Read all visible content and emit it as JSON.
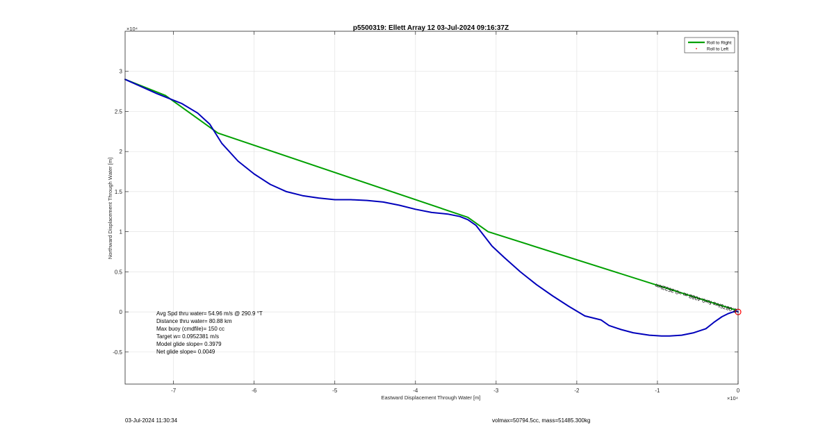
{
  "chart_data": {
    "type": "line",
    "title": "p5500319: Ellett Array 12 03-Jul-2024 09:16:37Z",
    "xlabel": "Eastward Displacement Through Water [m]",
    "ylabel": "Northward Displacement Through Water [m]",
    "xlim": [
      -76000,
      0
    ],
    "ylim": [
      -9000,
      35000
    ],
    "x_exponent_label": "×10⁴",
    "y_exponent_label": "×10⁴",
    "x_ticks": [
      -70000,
      -60000,
      -50000,
      -40000,
      -30000,
      -20000,
      -10000,
      0
    ],
    "x_tick_labels": [
      "-7",
      "-6",
      "-5",
      "-4",
      "-3",
      "-2",
      "-1",
      "0"
    ],
    "y_ticks": [
      -5000,
      0,
      5000,
      10000,
      15000,
      20000,
      25000,
      30000
    ],
    "y_tick_labels": [
      "-0.5",
      "0",
      "0.5",
      "1",
      "1.5",
      "2",
      "2.5",
      "3"
    ],
    "grid": true,
    "legend_position": "top-right",
    "series": [
      {
        "name": "Roll to Right",
        "color": "#00a000",
        "style": "line",
        "x": [
          -76000,
          -71000,
          -64500,
          -33500,
          -31000,
          -200
        ],
        "y": [
          29000,
          27000,
          22300,
          11800,
          10000,
          200
        ]
      },
      {
        "name": "Roll to Left",
        "color": "#ff0000",
        "style": "marker",
        "x": [],
        "y": []
      },
      {
        "name": "",
        "color": "#0000bb",
        "style": "line",
        "x": [
          -76000,
          -72000,
          -69000,
          -67000,
          -65500,
          -64000,
          -62000,
          -60000,
          -58000,
          -56000,
          -54000,
          -52000,
          -50000,
          -48000,
          -46000,
          -44000,
          -42000,
          -40000,
          -38000,
          -36000,
          -34500,
          -33500,
          -32500,
          -31500,
          -30500,
          -29000,
          -27000,
          -25000,
          -23000,
          -21000,
          -19000,
          -17000,
          -16000,
          -14500,
          -13000,
          -11000,
          -9500,
          -8500,
          -7000,
          -5500,
          -4000,
          -3000,
          -2000,
          -1200,
          -600,
          -200,
          0
        ],
        "y": [
          29000,
          27200,
          26000,
          24800,
          23400,
          21000,
          18800,
          17200,
          15900,
          15000,
          14500,
          14200,
          14000,
          14000,
          13900,
          13700,
          13300,
          12800,
          12400,
          12200,
          11900,
          11500,
          10800,
          9500,
          8200,
          6800,
          5000,
          3400,
          2000,
          700,
          -500,
          -1000,
          -1700,
          -2200,
          -2600,
          -2900,
          -3000,
          -3000,
          -2900,
          -2600,
          -2100,
          -1300,
          -600,
          -200,
          0,
          100,
          0
        ]
      }
    ],
    "annotation": "2.0875hrs for0.4088 m =0.3522km",
    "end_marker": {
      "x": 0,
      "y": 0,
      "color": "#ff0000"
    }
  },
  "stats": [
    "Avg Spd thru water= 54.96 m/s @ 290.9 °T",
    "Distance thru water= 80.88 km",
    "Max buoy (cmdfile)= 150 cc",
    "Target w= 0.0952381 m/s",
    "Model glide slope= 0.3979",
    "Net glide slope= 0.0049"
  ],
  "footer": {
    "left": "03-Jul-2024 11:30:34",
    "right": "volmax=50794.5cc, mass=51485.300kg"
  }
}
